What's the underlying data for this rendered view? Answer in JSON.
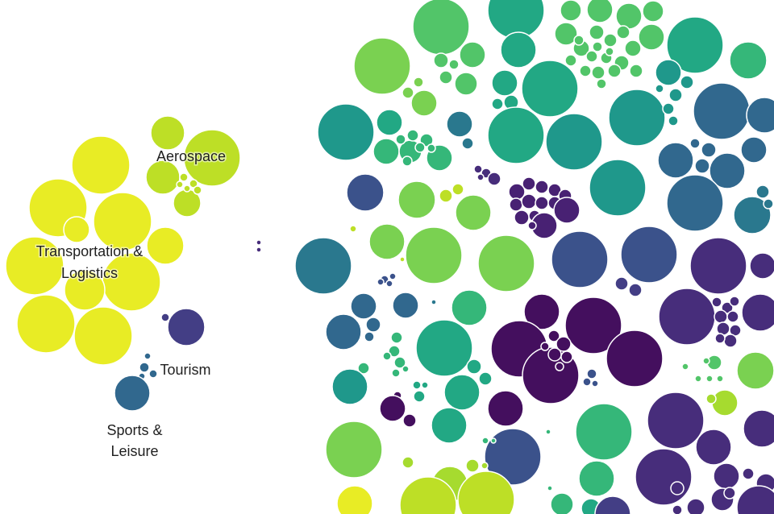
{
  "chart_data": {
    "type": "packed-bubble",
    "title": "",
    "colors": {
      "yellow": "#e8ec25",
      "lime": "#bddf26",
      "yellowgreen": "#a6db2f",
      "lightgreen": "#7ad151",
      "green": "#52c569",
      "mint": "#35b779",
      "teal": "#22a884",
      "seagreen": "#1f988b",
      "cyan": "#23898e",
      "steelteal": "#2a788e",
      "steel": "#31688e",
      "navy": "#3b528b",
      "indigo": "#433e85",
      "violet": "#472d7b",
      "purple": "#482173",
      "deep": "#440f5e"
    },
    "labels": {
      "aerospace": "Aerospace",
      "transport_1": "Transportation &",
      "transport_2": "Logistics",
      "tourism": "Tourism",
      "sports_1": "Sports &",
      "sports_2": "Leisure"
    }
  }
}
